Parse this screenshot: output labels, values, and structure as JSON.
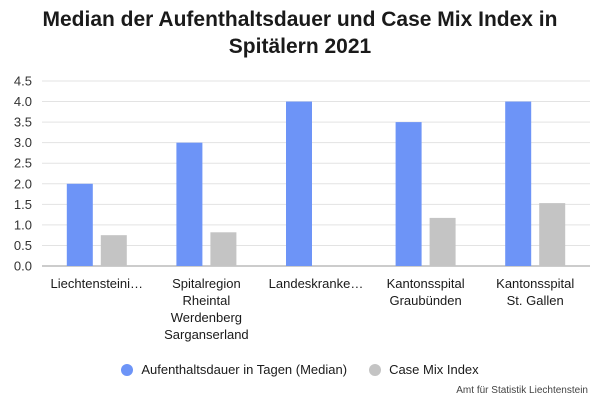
{
  "chart_data": {
    "type": "bar",
    "title": "Median der Aufenthaltsdauer und Case Mix Index in Spitälern 2021",
    "categories": [
      [
        "Liechtensteini…"
      ],
      [
        "Spitalregion",
        "Rheintal",
        "Werdenberg",
        "Sarganserland"
      ],
      [
        "Landeskranke…"
      ],
      [
        "Kantonsspital",
        "Graubünden"
      ],
      [
        "Kantonsspital",
        "St. Gallen"
      ]
    ],
    "series": [
      {
        "name": "Aufenthaltsdauer in Tagen (Median)",
        "color": "#6d94f7",
        "values": [
          2.0,
          3.0,
          4.0,
          3.5,
          4.0
        ]
      },
      {
        "name": "Case Mix Index",
        "color": "#c4c4c4",
        "values": [
          0.75,
          0.82,
          null,
          1.17,
          1.53
        ]
      }
    ],
    "yticks": [
      "0.0",
      "0.5",
      "1.0",
      "1.5",
      "2.0",
      "2.5",
      "3.0",
      "3.5",
      "4.0",
      "4.5"
    ],
    "ylim": [
      0,
      4.5
    ],
    "grid": true,
    "legend_position": "bottom",
    "source": "Amt für Statistik Liechtenstein"
  }
}
